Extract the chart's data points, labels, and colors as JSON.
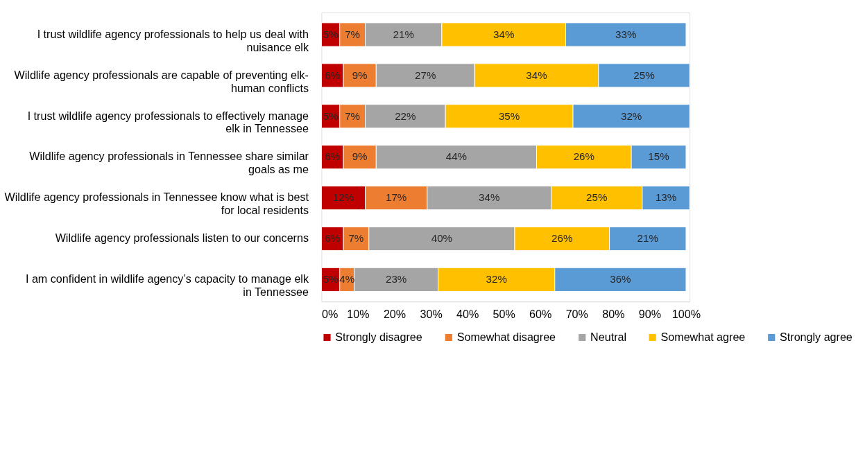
{
  "chart_data": {
    "type": "bar",
    "orientation": "horizontal",
    "stacked": true,
    "categories": [
      "I trust wildlife agency professionals to help us deal with nuisance elk",
      "Wildlife agency professionals are capable of preventing elk-human conflicts",
      "I trust wildlife agency professionals to effectively manage elk in Tennessee",
      "Wildlife agency professionals in Tennessee share similar goals as me",
      "Wildlife agency professionals in Tennessee know what is best for local residents",
      "Wildlife agency professionals listen to our concerns",
      "I am confident in wildlife agency’s capacity to manage elk in Tennessee"
    ],
    "series": [
      {
        "name": "Strongly disagree",
        "color": "#c00000",
        "values": [
          5,
          6,
          5,
          6,
          12,
          6,
          5
        ],
        "value_labels": [
          "5%",
          "6%",
          "5%",
          "6%",
          "12%",
          "6%",
          "5%"
        ]
      },
      {
        "name": "Somewhat disagree",
        "color": "#ed7d31",
        "values": [
          7,
          9,
          7,
          9,
          17,
          7,
          4
        ],
        "value_labels": [
          "7%",
          "9%",
          "7%",
          "9%",
          "17%",
          "7%",
          "4%"
        ]
      },
      {
        "name": "Neutral",
        "color": "#a5a5a5",
        "values": [
          21,
          27,
          22,
          44,
          34,
          40,
          23
        ],
        "value_labels": [
          "21%",
          "27%",
          "22%",
          "44%",
          "34%",
          "40%",
          "23%"
        ]
      },
      {
        "name": "Somewhat agree",
        "color": "#ffc000",
        "values": [
          34,
          34,
          35,
          26,
          25,
          26,
          32
        ],
        "value_labels": [
          "34%",
          "34%",
          "35%",
          "26%",
          "25%",
          "26%",
          "32%"
        ]
      },
      {
        "name": "Strongly agree",
        "color": "#5b9bd5",
        "values": [
          33,
          25,
          32,
          15,
          13,
          21,
          36
        ],
        "value_labels": [
          "33%",
          "25%",
          "32%",
          "15%",
          "13%",
          "21%",
          "36%"
        ]
      }
    ],
    "xlim": [
      0,
      101
    ],
    "xticks": [
      {
        "value": 0,
        "label": "0%"
      },
      {
        "value": 10,
        "label": "10%"
      },
      {
        "value": 20,
        "label": "20%"
      },
      {
        "value": 30,
        "label": "30%"
      },
      {
        "value": 40,
        "label": "40%"
      },
      {
        "value": 50,
        "label": "50%"
      },
      {
        "value": 60,
        "label": "60%"
      },
      {
        "value": 70,
        "label": "70%"
      },
      {
        "value": 80,
        "label": "80%"
      },
      {
        "value": 90,
        "label": "90%"
      },
      {
        "value": 100,
        "label": "100%"
      }
    ],
    "grid": false,
    "legend": "bottom"
  }
}
